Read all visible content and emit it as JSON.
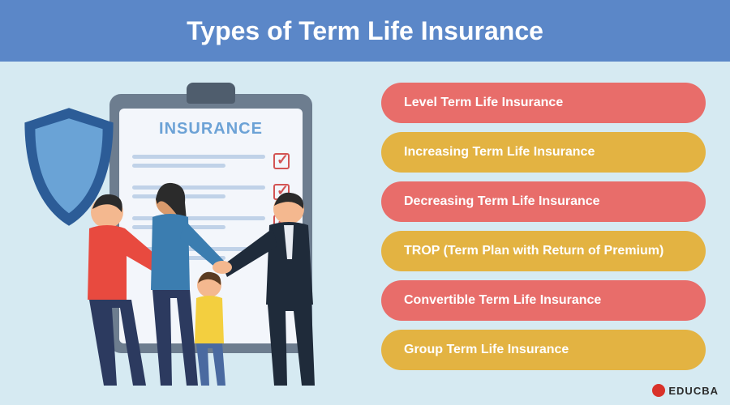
{
  "header": {
    "title": "Types of Term Life Insurance",
    "bg_color": "#5b87c8",
    "text_color": "#ffffff"
  },
  "background_color": "#d6eaf2",
  "clipboard": {
    "title": "INSURANCE",
    "board_color": "#6d7d8f",
    "paper_color": "#f3f6fb",
    "title_color": "#6ca2d6",
    "line_color": "#c0d2e8",
    "check_color": "#d35454",
    "rows": 4
  },
  "shield": {
    "outer_color": "#2c5c97",
    "inner_color": "#6aa3d6"
  },
  "pills": {
    "type": "list",
    "pill_height": 50,
    "pill_radius": 25,
    "font_size": 16,
    "text_color": "#ffffff",
    "items": [
      {
        "label": "Level Term Life Insurance",
        "color": "#e86d6a"
      },
      {
        "label": "Increasing Term Life Insurance",
        "color": "#e3b342"
      },
      {
        "label": "Decreasing Term Life Insurance",
        "color": "#e86d6a"
      },
      {
        "label": "TROP (Term Plan with Return of Premium)",
        "color": "#e3b342"
      },
      {
        "label": "Convertible Term Life Insurance",
        "color": "#e86d6a"
      },
      {
        "label": "Group Term Life Insurance",
        "color": "#e3b342"
      }
    ]
  },
  "logo": {
    "text": "EDUCBA",
    "mark_color": "#d9322a"
  },
  "people": {
    "man_left": {
      "shirt": "#e84a3f",
      "pants": "#2c3a5f",
      "skin": "#f4b88f",
      "hair": "#2b2b2b"
    },
    "woman": {
      "top": "#3b7db0",
      "pants": "#2c3a5f",
      "skin": "#d99a6c",
      "hair": "#2b2b2b"
    },
    "child": {
      "shirt": "#f3cf3f",
      "pants": "#4a6aa0",
      "skin": "#f4b88f",
      "hair": "#5a3b22"
    },
    "man_right": {
      "suit": "#1f2b3a",
      "shirt": "#e8ecf2",
      "skin": "#f4b88f",
      "hair": "#2b2b2b"
    }
  }
}
